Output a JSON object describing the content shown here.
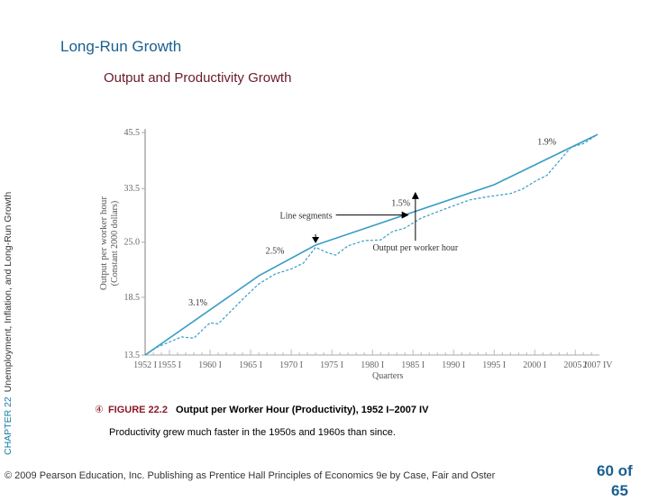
{
  "slide": {
    "title": "Long-Run Growth",
    "subtitle": "Output and Productivity Growth",
    "chapter_label": "CHAPTER 22",
    "chapter_title": "Unemployment, Inflation, and Long-Run Growth"
  },
  "figure": {
    "bullet": "④",
    "number": "FIGURE 22.2",
    "title": "Output per Worker Hour (Productivity), 1952 I–2007 IV",
    "description": "Productivity grew much faster in the 1950s and 1960s than since."
  },
  "footer": {
    "copyright": "© 2009 Pearson Education, Inc. Publishing as Prentice Hall   Principles of Economics 9e by Case, Fair and Oster",
    "page": "60 of",
    "page_total": "65"
  },
  "colors": {
    "title": "#1a5f8f",
    "subtitle": "#6b1a28",
    "line": "#3a9cc4",
    "accent": "#8b1a2a"
  },
  "chart_data": {
    "type": "line",
    "title": "Output per Worker Hour (Productivity), 1952 I–2007 IV",
    "xlabel": "Quarters",
    "ylabel": "Output per worker hour",
    "ylabel2": "(Constant 2000 dollars)",
    "yscale": "log",
    "ylim": [
      13.5,
      45.5
    ],
    "xlim": [
      1952.0,
      2007.75
    ],
    "yticks": [
      13.5,
      18.5,
      25.0,
      33.5,
      45.5
    ],
    "ytick_labels": [
      "13.5",
      "18.5",
      "25.0",
      "33.5",
      "45.5"
    ],
    "xticks": [
      1952.0,
      1955.0,
      1960.0,
      1965.0,
      1970.0,
      1975.0,
      1980.0,
      1985.0,
      1990.0,
      1995.0,
      2000.0,
      2005.0,
      2007.75
    ],
    "xtick_labels": [
      "1952 I",
      "1955 I",
      "1960 I",
      "1965 I",
      "1970 I",
      "1975 I",
      "1980 I",
      "1985 I",
      "1990 I",
      "1995 I",
      "2000 I",
      "2005 I",
      "2007 IV"
    ],
    "grid": false,
    "series": [
      {
        "name": "Line segments",
        "style": "solid",
        "x": [
          1952.0,
          1966.0,
          1973.0,
          1995.0,
          2007.75
        ],
        "y": [
          13.5,
          20.8,
          24.6,
          34.2,
          45.0
        ]
      },
      {
        "name": "Output per worker hour",
        "style": "dashed",
        "x": [
          1952.0,
          1953.5,
          1955.0,
          1956.5,
          1958.0,
          1960.0,
          1961.0,
          1962.5,
          1964.0,
          1966.0,
          1968.0,
          1970.0,
          1971.5,
          1973.0,
          1974.5,
          1975.5,
          1977.0,
          1979.0,
          1981.0,
          1982.5,
          1984.0,
          1986.0,
          1988.0,
          1990.0,
          1992.0,
          1994.0,
          1995.5,
          1997.0,
          1998.5,
          2000.0,
          2001.5,
          2003.0,
          2004.5,
          2006.0,
          2007.75
        ],
        "y": [
          13.5,
          14.1,
          14.5,
          14.9,
          14.8,
          16.1,
          16.0,
          17.1,
          18.3,
          19.9,
          21.0,
          21.6,
          22.3,
          24.3,
          23.6,
          23.3,
          24.5,
          25.2,
          25.3,
          26.5,
          27.0,
          28.5,
          29.5,
          30.5,
          31.5,
          32.0,
          32.3,
          32.6,
          33.4,
          34.8,
          36.0,
          38.9,
          42.0,
          42.8,
          45.0
        ]
      }
    ],
    "annotations": [
      {
        "text": "3.1%",
        "x": 1958.5,
        "y": 17.7
      },
      {
        "text": "2.5%",
        "x": 1968.0,
        "y": 23.5
      },
      {
        "text": "1.5%",
        "x": 1983.5,
        "y": 30.5
      },
      {
        "text": "1.9%",
        "x": 2001.5,
        "y": 42.6
      },
      {
        "text": "Line segments",
        "arrow": "right",
        "x": 1975.5,
        "y": 29.0
      },
      {
        "text": "Output per worker hour",
        "arrow": "up",
        "x": 1980.5,
        "y": 26.2
      }
    ],
    "markers": [
      {
        "type": "down-arrow",
        "x": 1973.0,
        "y": 24.6
      }
    ]
  }
}
